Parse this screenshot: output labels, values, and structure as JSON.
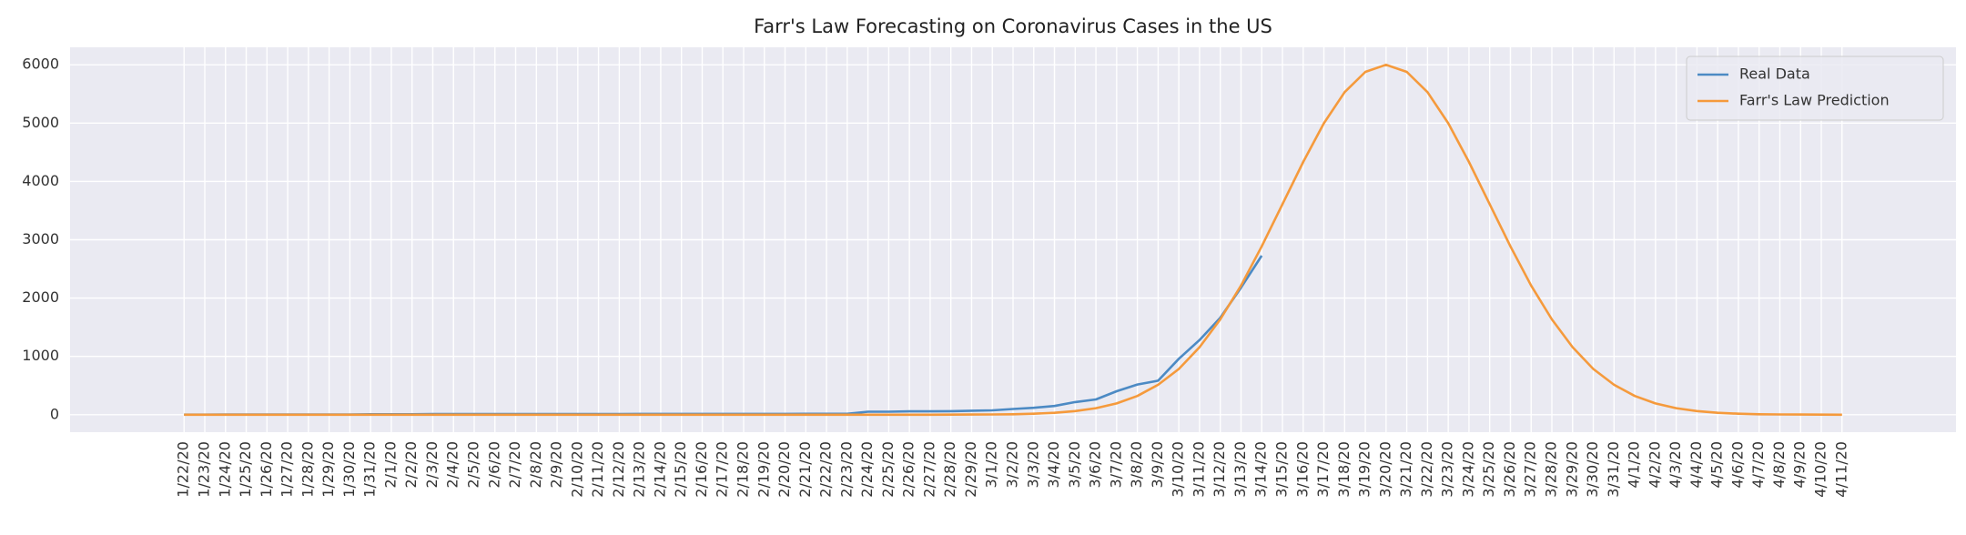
{
  "chart_data": {
    "type": "line",
    "title": "Farr's Law Forecasting on Coronavirus Cases in the US",
    "categories": [
      "1/22/20",
      "1/23/20",
      "1/24/20",
      "1/25/20",
      "1/26/20",
      "1/27/20",
      "1/28/20",
      "1/29/20",
      "1/30/20",
      "1/31/20",
      "2/1/20",
      "2/2/20",
      "2/3/20",
      "2/4/20",
      "2/5/20",
      "2/6/20",
      "2/7/20",
      "2/8/20",
      "2/9/20",
      "2/10/20",
      "2/11/20",
      "2/12/20",
      "2/13/20",
      "2/14/20",
      "2/15/20",
      "2/16/20",
      "2/17/20",
      "2/18/20",
      "2/19/20",
      "2/20/20",
      "2/21/20",
      "2/22/20",
      "2/23/20",
      "2/24/20",
      "2/25/20",
      "2/26/20",
      "2/27/20",
      "2/28/20",
      "2/29/20",
      "3/1/20",
      "3/2/20",
      "3/3/20",
      "3/4/20",
      "3/5/20",
      "3/6/20",
      "3/7/20",
      "3/8/20",
      "3/9/20",
      "3/10/20",
      "3/11/20",
      "3/12/20",
      "3/13/20",
      "3/14/20",
      "3/15/20",
      "3/16/20",
      "3/17/20",
      "3/18/20",
      "3/19/20",
      "3/20/20",
      "3/21/20",
      "3/22/20",
      "3/23/20",
      "3/24/20",
      "3/25/20",
      "3/26/20",
      "3/27/20",
      "3/28/20",
      "3/29/20",
      "3/30/20",
      "3/31/20",
      "4/1/20",
      "4/2/20",
      "4/3/20",
      "4/4/20",
      "4/5/20",
      "4/6/20",
      "4/7/20",
      "4/8/20",
      "4/9/20",
      "4/10/20",
      "4/11/20"
    ],
    "series": [
      {
        "name": "Real Data",
        "color": "#4c8ac4",
        "values": [
          1,
          1,
          2,
          2,
          5,
          5,
          5,
          5,
          5,
          7,
          8,
          8,
          11,
          11,
          11,
          11,
          11,
          11,
          11,
          11,
          12,
          12,
          13,
          13,
          13,
          13,
          13,
          13,
          13,
          13,
          15,
          15,
          15,
          51,
          51,
          57,
          58,
          60,
          68,
          74,
          98,
          118,
          149,
          217,
          262,
          402,
          518,
          583,
          959,
          1281,
          1663,
          2179,
          2727,
          null,
          null,
          null,
          null,
          null,
          null,
          null,
          null,
          null,
          null,
          null,
          null,
          null,
          null,
          null,
          null,
          null,
          null,
          null,
          null,
          null,
          null,
          null,
          null,
          null,
          null,
          null,
          null
        ]
      },
      {
        "name": "Farr's Law Prediction",
        "color": "#f59a3c",
        "values": [
          0,
          0,
          0,
          0,
          0,
          0,
          0,
          0,
          0,
          0,
          0,
          0,
          0,
          0,
          0,
          0,
          0,
          0,
          0,
          0,
          0,
          0,
          0,
          0,
          0,
          0,
          0,
          0,
          0,
          0,
          0,
          0,
          0,
          0,
          0,
          0,
          0,
          1,
          2,
          4,
          8,
          17,
          33,
          62,
          112,
          193,
          321,
          513,
          785,
          1157,
          1634,
          2215,
          2886,
          3610,
          4334,
          4997,
          5531,
          5879,
          6000,
          5879,
          5531,
          4997,
          4334,
          3610,
          2886,
          2215,
          1634,
          1157,
          785,
          513,
          321,
          193,
          112,
          62,
          33,
          17,
          8,
          4,
          2,
          1,
          0
        ]
      }
    ],
    "ylim": [
      -300,
      6300
    ],
    "yticks": [
      0,
      1000,
      2000,
      3000,
      4000,
      5000,
      6000
    ],
    "grid": true,
    "legend": "upper right"
  }
}
